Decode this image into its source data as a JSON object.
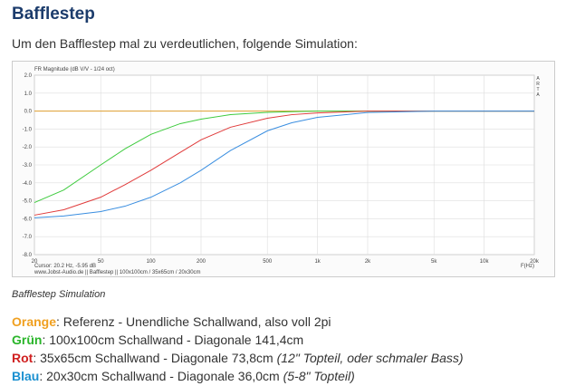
{
  "header": {
    "title": "Bafflestep"
  },
  "intro": "Um den Bafflestep mal zu verdeutlichen, folgende Simulation:",
  "chart_data": {
    "type": "line",
    "title": "FR Magnitude (dB V/V - 1/24 oct)",
    "side_label": "ARTA",
    "x_label": "F(Hz)",
    "cursor_text": "Cursor: 20.2 Hz, -5.95 dB",
    "footer_text": "www.Jobst-Audio.de || Bafflestep || 100x100cm / 35x65cm / 20x30cm",
    "x_scale": "log",
    "grid": true,
    "x": [
      20,
      30,
      50,
      70,
      100,
      150,
      200,
      300,
      500,
      700,
      1000,
      2000,
      5000,
      10000,
      20000
    ],
    "series": [
      {
        "name": "Orange",
        "color": "#e0a030",
        "values": [
          0,
          0,
          0,
          0,
          0,
          0,
          0,
          0,
          0,
          0,
          0,
          0,
          0,
          0,
          0
        ]
      },
      {
        "name": "Grün",
        "color": "#3ecb3e",
        "values": [
          -5.1,
          -4.4,
          -3.0,
          -2.1,
          -1.3,
          -0.7,
          -0.45,
          -0.2,
          -0.07,
          -0.03,
          0,
          0,
          0,
          0,
          0
        ]
      },
      {
        "name": "Rot",
        "color": "#e03a3a",
        "values": [
          -5.8,
          -5.5,
          -4.8,
          -4.1,
          -3.3,
          -2.3,
          -1.6,
          -0.9,
          -0.4,
          -0.2,
          -0.1,
          0,
          0,
          0,
          0
        ]
      },
      {
        "name": "Blau",
        "color": "#3a8ee0",
        "values": [
          -5.95,
          -5.85,
          -5.6,
          -5.3,
          -4.8,
          -4.0,
          -3.3,
          -2.2,
          -1.1,
          -0.65,
          -0.35,
          -0.08,
          0,
          0,
          0
        ]
      }
    ],
    "xlim": [
      20,
      20000
    ],
    "xticks": [
      20,
      50,
      100,
      200,
      500,
      {
        "value": 1000,
        "label": "1k"
      },
      {
        "value": 2000,
        "label": "2k"
      },
      {
        "value": 5000,
        "label": "5k"
      },
      {
        "value": 10000,
        "label": "10k"
      },
      {
        "value": 20000,
        "label": "20k"
      }
    ],
    "ylim": [
      -8,
      2
    ],
    "yticks": [
      {
        "value": -8,
        "label": "-8.0"
      },
      {
        "value": -7,
        "label": "-7.0"
      },
      {
        "value": -6,
        "label": "-6.0"
      },
      {
        "value": -5,
        "label": "-5.0"
      },
      {
        "value": -4,
        "label": "-4.0"
      },
      {
        "value": -3,
        "label": "-3.0"
      },
      {
        "value": -2,
        "label": "-2.0"
      },
      {
        "value": -1,
        "label": "-1.0"
      },
      {
        "value": 0,
        "label": "0.0"
      },
      {
        "value": 1,
        "label": "1.0"
      },
      {
        "value": 2,
        "label": "2.0"
      }
    ]
  },
  "caption": "Bafflestep Simulation",
  "legend_notes": [
    {
      "name": "Orange",
      "color": "#f0a020",
      "text": ": Referenz - Unendliche Schallwand, also voll 2pi"
    },
    {
      "name": "Grün",
      "color": "#2ab52a",
      "text": ": 100x100cm Schallwand - Diagonale 141,4cm"
    },
    {
      "name": "Rot",
      "color": "#d02020",
      "text": ": 35x65cm Schallwand - Diagonale 73,8cm ",
      "note": "(12\" Topteil, oder schmaler Bass)"
    },
    {
      "name": "Blau",
      "color": "#1a90d0",
      "text": ": 20x30cm Schallwand - Diagonale 36,0cm ",
      "note": "(5-8\" Topteil)"
    }
  ]
}
